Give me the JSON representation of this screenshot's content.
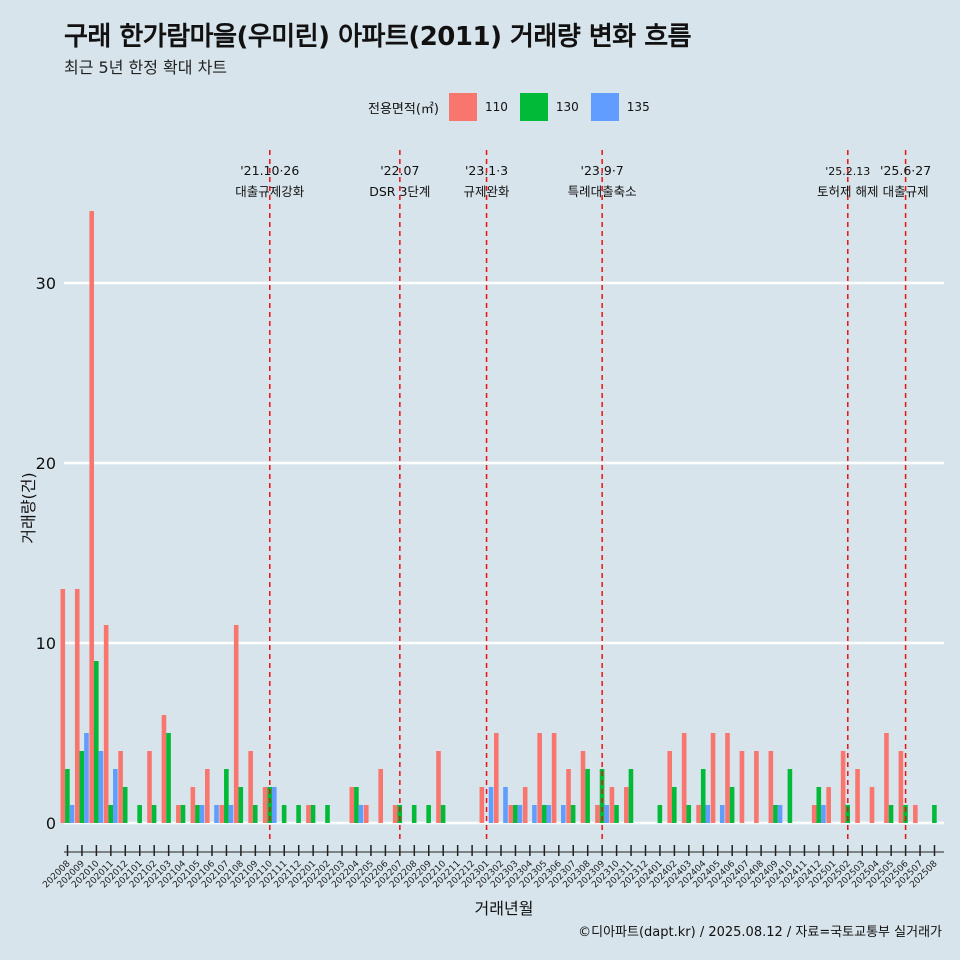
{
  "header": {
    "title": "구래 한가람마을(우미린) 아파트(2011) 거래량 변화 흐름",
    "subtitle": "최근 5년 한정 확대 차트"
  },
  "legend": {
    "title": "전용면적(㎡)",
    "items": [
      {
        "label": "110",
        "color": "#F8766D"
      },
      {
        "label": "130",
        "color": "#00BA38"
      },
      {
        "label": "135",
        "color": "#619CFF"
      }
    ]
  },
  "caption": "©디아파트(dapt.kr) / 2025.08.12 / 자료=국토교통부 실거래가",
  "chart_data": {
    "type": "bar",
    "xlabel": "거래년월",
    "ylabel": "거래량(건)",
    "ylim": [
      0,
      35
    ],
    "yticks": [
      0,
      10,
      20,
      30
    ],
    "grid": true,
    "legend_position": "top",
    "categories": [
      "202008",
      "202009",
      "202010",
      "202011",
      "202012",
      "202101",
      "202102",
      "202103",
      "202104",
      "202105",
      "202106",
      "202107",
      "202108",
      "202109",
      "202110",
      "202111",
      "202112",
      "202201",
      "202202",
      "202203",
      "202204",
      "202205",
      "202206",
      "202207",
      "202208",
      "202209",
      "202210",
      "202211",
      "202212",
      "202301",
      "202302",
      "202303",
      "202304",
      "202305",
      "202306",
      "202307",
      "202308",
      "202309",
      "202310",
      "202311",
      "202312",
      "202401",
      "202402",
      "202403",
      "202404",
      "202405",
      "202406",
      "202407",
      "202408",
      "202409",
      "202410",
      "202411",
      "202412",
      "202501",
      "202502",
      "202503",
      "202504",
      "202505",
      "202506",
      "202507",
      "202508"
    ],
    "series": [
      {
        "name": "110",
        "color": "#F8766D",
        "values": [
          13,
          13,
          34,
          11,
          4,
          0,
          4,
          6,
          1,
          2,
          3,
          1,
          11,
          4,
          2,
          0,
          0,
          1,
          0,
          0,
          2,
          1,
          3,
          1,
          0,
          0,
          4,
          0,
          0,
          2,
          5,
          1,
          2,
          5,
          5,
          3,
          4,
          1,
          2,
          2,
          0,
          0,
          4,
          5,
          1,
          5,
          5,
          4,
          4,
          4,
          0,
          0,
          1,
          2,
          4,
          3,
          2,
          5,
          4,
          1,
          0
        ]
      },
      {
        "name": "130",
        "color": "#00BA38",
        "values": [
          3,
          4,
          9,
          1,
          2,
          1,
          1,
          5,
          1,
          1,
          0,
          3,
          2,
          1,
          2,
          1,
          1,
          1,
          1,
          0,
          2,
          0,
          0,
          1,
          1,
          1,
          1,
          0,
          0,
          0,
          0,
          1,
          0,
          1,
          0,
          1,
          3,
          3,
          1,
          3,
          0,
          1,
          2,
          1,
          3,
          0,
          2,
          0,
          0,
          1,
          3,
          0,
          2,
          0,
          1,
          0,
          0,
          1,
          1,
          0,
          1
        ]
      },
      {
        "name": "135",
        "color": "#619CFF",
        "values": [
          1,
          5,
          4,
          3,
          0,
          0,
          0,
          0,
          0,
          1,
          1,
          1,
          0,
          0,
          2,
          0,
          0,
          0,
          0,
          0,
          1,
          0,
          0,
          0,
          0,
          0,
          0,
          0,
          0,
          2,
          2,
          1,
          1,
          1,
          1,
          0,
          0,
          1,
          0,
          0,
          0,
          0,
          0,
          0,
          1,
          1,
          0,
          0,
          0,
          1,
          0,
          0,
          1,
          0,
          0,
          0,
          0,
          0,
          0,
          0,
          0
        ]
      }
    ],
    "events": [
      {
        "date_label": "'21.10·26",
        "label": "대출규제강화",
        "at": "202110"
      },
      {
        "date_label": "'22.07",
        "label": "DSR 3단계",
        "at": "202207"
      },
      {
        "date_label": "'23.1·3",
        "label": "규제완화",
        "at": "202301"
      },
      {
        "date_label": "'23.9·7",
        "label": "특례대출축소",
        "at": "202309"
      },
      {
        "date_label": "'25.2.13",
        "label": "토허제 해제",
        "at": "202502"
      },
      {
        "date_label": "'25.6·27",
        "label": "대출규제",
        "at": "202506"
      }
    ]
  }
}
